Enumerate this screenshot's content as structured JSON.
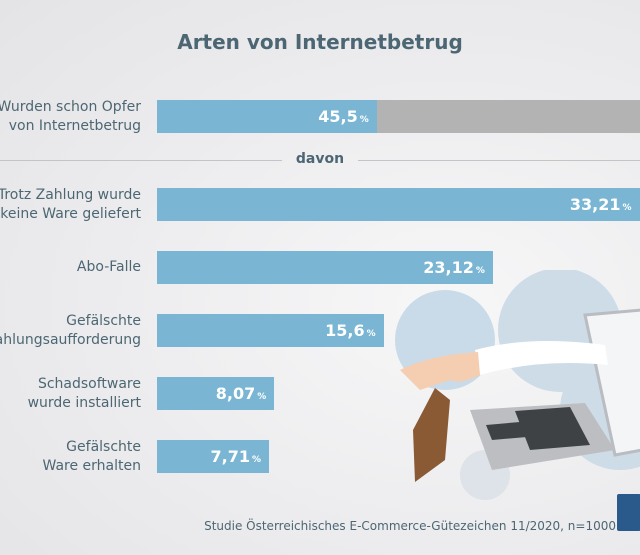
{
  "chart_data": {
    "type": "bar",
    "orientation": "horizontal",
    "title": "Arten von Internetbetrug",
    "unit": "%",
    "main": {
      "category": "Wurden schon Opfer von Internetbetrug",
      "value": 45.5,
      "label": "45,5",
      "total": 100
    },
    "separator": "davon",
    "categories": [
      "Trotz Zahlung wurde keine Ware geliefert",
      "Abo-Falle",
      "Gefälschte Zahlungsaufforderung",
      "Schadsoftware wurde installiert",
      "Gefälschte Ware erhalten"
    ],
    "values": [
      33.21,
      23.12,
      15.6,
      8.07,
      7.71
    ],
    "value_labels": [
      "33,21",
      "23,12",
      "15,6",
      "8,07",
      "7,71"
    ],
    "source": "Studie Österreichisches E-Commerce-Gütezeichen 11/2020, n=1000",
    "colors": {
      "bar": "#7ab6d4",
      "remainder": "#b3b3b4",
      "text": "#4c6773"
    }
  }
}
